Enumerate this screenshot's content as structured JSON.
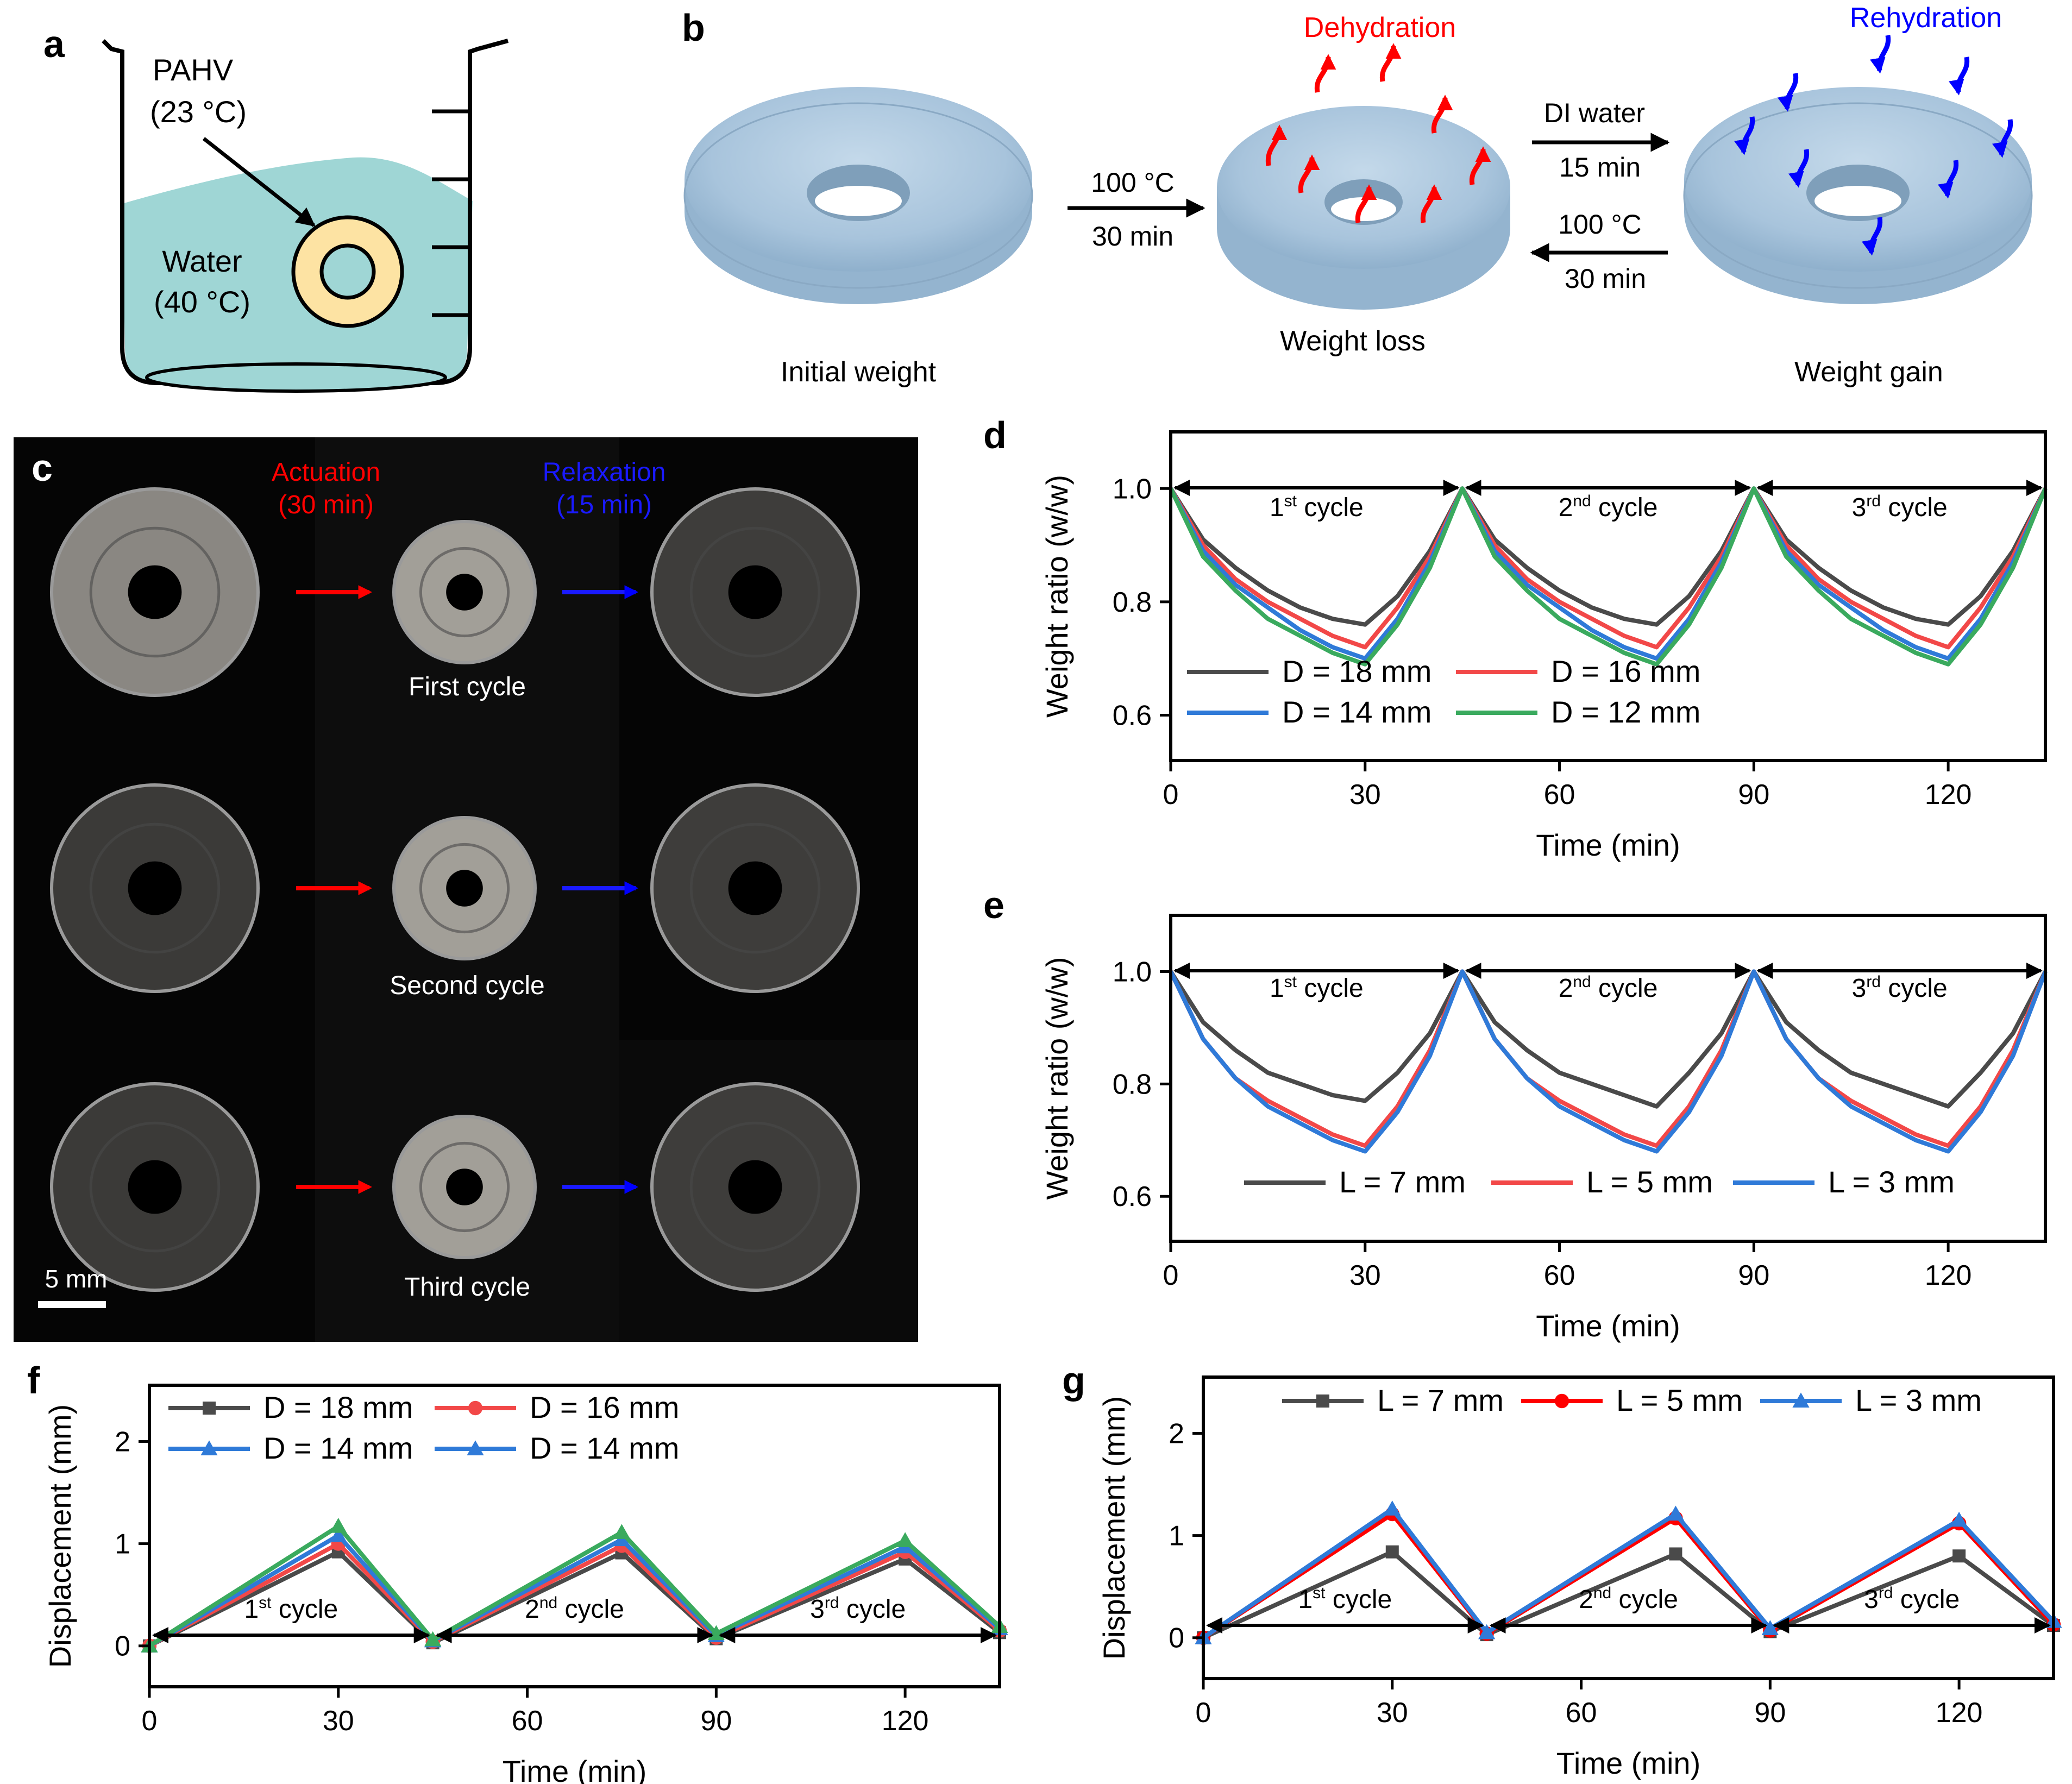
{
  "panel_labels": {
    "a": "a",
    "b": "b",
    "c": "c",
    "d": "d",
    "e": "e",
    "f": "f",
    "g": "g"
  },
  "panel_a": {
    "sample_label": "PAHV",
    "sample_temp": "(23 °C)",
    "water_label": "Water",
    "water_temp": "(40 °C)",
    "colors": {
      "water": "#9fd6d5",
      "sample": "#fde3a3"
    }
  },
  "panel_b": {
    "dehydration_label": "Dehydration",
    "rehydration_label": "Rehydration",
    "step1_top": "100 °C",
    "step1_bottom": "30 min",
    "step2_top": "DI water",
    "step2_bottom": "15 min",
    "step3_top": "100 °C",
    "step3_bottom": "30 min",
    "caption_initial": "Initial weight",
    "caption_loss": "Weight loss",
    "caption_gain": "Weight gain",
    "colors": {
      "torus": "#a8c4dc",
      "dehydration": "#ff0000",
      "rehydration": "#0000ff"
    }
  },
  "panel_c": {
    "actuation_label": "Actuation",
    "actuation_time": "(30 min)",
    "relaxation_label": "Relaxation",
    "relaxation_time": "(15 min)",
    "row_captions": [
      "First cycle",
      "Second cycle",
      "Third cycle"
    ],
    "scale_bar": "5 mm"
  },
  "cycle_labels": [
    {
      "num": "1",
      "sup": "st",
      "word": " cycle"
    },
    {
      "num": "2",
      "sup": "nd",
      "word": " cycle"
    },
    {
      "num": "3",
      "sup": "rd",
      "word": " cycle"
    }
  ],
  "chart_data": [
    {
      "id": "d",
      "type": "line",
      "xlabel": "Time (min)",
      "ylabel": "Weight ratio (w/w)",
      "xlim": [
        0,
        135
      ],
      "ylim": [
        0.52,
        1.1
      ],
      "xticks": [
        0,
        30,
        60,
        90,
        120
      ],
      "yticks": [
        0.6,
        0.8,
        1.0
      ],
      "ytick_labels": [
        "0.6",
        "0.8",
        "1.0"
      ],
      "x": [
        0,
        5,
        10,
        15,
        20,
        25,
        30,
        35,
        40,
        45,
        50,
        55,
        60,
        65,
        70,
        75,
        80,
        85,
        90,
        95,
        100,
        105,
        110,
        115,
        120,
        125,
        130,
        135
      ],
      "series": [
        {
          "name": "D = 18 mm",
          "color": "#4a4a4a",
          "values": [
            1.0,
            0.91,
            0.86,
            0.82,
            0.79,
            0.77,
            0.76,
            0.81,
            0.89,
            1.0,
            0.91,
            0.86,
            0.82,
            0.79,
            0.77,
            0.76,
            0.81,
            0.89,
            1.0,
            0.91,
            0.86,
            0.82,
            0.79,
            0.77,
            0.76,
            0.81,
            0.89,
            1.0
          ]
        },
        {
          "name": "D = 16 mm",
          "color": "#f24848",
          "values": [
            1.0,
            0.9,
            0.84,
            0.8,
            0.77,
            0.74,
            0.72,
            0.79,
            0.88,
            1.0,
            0.9,
            0.84,
            0.8,
            0.77,
            0.74,
            0.72,
            0.79,
            0.88,
            1.0,
            0.9,
            0.84,
            0.8,
            0.77,
            0.74,
            0.72,
            0.79,
            0.88,
            1.0
          ]
        },
        {
          "name": "D = 14 mm",
          "color": "#2f7ad8",
          "values": [
            1.0,
            0.89,
            0.83,
            0.79,
            0.75,
            0.72,
            0.7,
            0.77,
            0.87,
            1.0,
            0.89,
            0.83,
            0.79,
            0.75,
            0.72,
            0.7,
            0.77,
            0.87,
            1.0,
            0.89,
            0.83,
            0.79,
            0.75,
            0.72,
            0.7,
            0.77,
            0.87,
            1.0
          ]
        },
        {
          "name": "D = 12 mm",
          "color": "#3aaa5e",
          "values": [
            1.0,
            0.88,
            0.82,
            0.77,
            0.74,
            0.71,
            0.69,
            0.76,
            0.86,
            1.0,
            0.88,
            0.82,
            0.77,
            0.74,
            0.71,
            0.69,
            0.76,
            0.86,
            1.0,
            0.88,
            0.82,
            0.77,
            0.74,
            0.71,
            0.69,
            0.76,
            0.86,
            1.0
          ]
        }
      ]
    },
    {
      "id": "e",
      "type": "line",
      "xlabel": "Time (min)",
      "ylabel": "Weight ratio (w/w)",
      "xlim": [
        0,
        135
      ],
      "ylim": [
        0.52,
        1.1
      ],
      "xticks": [
        0,
        30,
        60,
        90,
        120
      ],
      "yticks": [
        0.6,
        0.8,
        1.0
      ],
      "ytick_labels": [
        "0.6",
        "0.8",
        "1.0"
      ],
      "x": [
        0,
        5,
        10,
        15,
        20,
        25,
        30,
        35,
        40,
        45,
        50,
        55,
        60,
        65,
        70,
        75,
        80,
        85,
        90,
        95,
        100,
        105,
        110,
        115,
        120,
        125,
        130,
        135
      ],
      "series": [
        {
          "name": "L = 7 mm",
          "color": "#4a4a4a",
          "values": [
            1.0,
            0.91,
            0.86,
            0.82,
            0.8,
            0.78,
            0.77,
            0.82,
            0.89,
            1.0,
            0.91,
            0.86,
            0.82,
            0.8,
            0.78,
            0.76,
            0.82,
            0.89,
            1.0,
            0.91,
            0.86,
            0.82,
            0.8,
            0.78,
            0.76,
            0.82,
            0.89,
            1.0
          ]
        },
        {
          "name": "L = 5 mm",
          "color": "#f24848",
          "values": [
            1.0,
            0.88,
            0.81,
            0.77,
            0.74,
            0.71,
            0.69,
            0.76,
            0.86,
            1.0,
            0.88,
            0.81,
            0.77,
            0.74,
            0.71,
            0.69,
            0.76,
            0.86,
            1.0,
            0.88,
            0.81,
            0.77,
            0.74,
            0.71,
            0.69,
            0.76,
            0.86,
            1.0
          ]
        },
        {
          "name": "L = 3 mm",
          "color": "#2f7ad8",
          "values": [
            1.0,
            0.88,
            0.81,
            0.76,
            0.73,
            0.7,
            0.68,
            0.75,
            0.85,
            1.0,
            0.88,
            0.81,
            0.76,
            0.73,
            0.7,
            0.68,
            0.75,
            0.85,
            1.0,
            0.88,
            0.81,
            0.76,
            0.73,
            0.7,
            0.68,
            0.75,
            0.85,
            1.0
          ]
        }
      ]
    },
    {
      "id": "f",
      "type": "line",
      "xlabel": "Time (min)",
      "ylabel": "Displacement (mm)",
      "xlim": [
        0,
        135
      ],
      "ylim": [
        -0.4,
        2.55
      ],
      "xticks": [
        0,
        30,
        60,
        90,
        120
      ],
      "yticks": [
        0,
        1,
        2
      ],
      "ytick_labels": [
        "0",
        "1",
        "2"
      ],
      "x": [
        0,
        30,
        45,
        75,
        90,
        120,
        135
      ],
      "series": [
        {
          "name": "D = 18 mm",
          "color": "#4a4a4a",
          "marker": "square",
          "values": [
            0.0,
            0.92,
            0.03,
            0.91,
            0.07,
            0.85,
            0.13
          ]
        },
        {
          "name": "D = 16 mm",
          "color": "#f24848",
          "marker": "circle",
          "values": [
            0.0,
            1.0,
            0.04,
            0.98,
            0.08,
            0.92,
            0.15
          ]
        },
        {
          "name": "D = 14 mm",
          "color": "#2f7ad8",
          "marker": "triangle",
          "values": [
            0.0,
            1.08,
            0.05,
            1.04,
            0.1,
            0.97,
            0.17
          ]
        },
        {
          "name": "D = 14 mm",
          "color": "#3aaa5e",
          "legend_color": "#2f7ad8",
          "marker": "triangle",
          "values": [
            0.0,
            1.17,
            0.06,
            1.11,
            0.12,
            1.03,
            0.19
          ]
        }
      ]
    },
    {
      "id": "g",
      "type": "line",
      "xlabel": "Time (min)",
      "ylabel": "Displacement (mm)",
      "xlim": [
        0,
        135
      ],
      "ylim": [
        -0.4,
        2.55
      ],
      "xticks": [
        0,
        30,
        60,
        90,
        120
      ],
      "yticks": [
        0,
        1,
        2
      ],
      "ytick_labels": [
        "0",
        "1",
        "2"
      ],
      "x": [
        0,
        30,
        45,
        75,
        90,
        120,
        135
      ],
      "series": [
        {
          "name": "L = 7 mm",
          "color": "#4a4a4a",
          "marker": "square",
          "values": [
            0.0,
            0.84,
            0.03,
            0.82,
            0.06,
            0.8,
            0.12
          ]
        },
        {
          "name": "L = 5 mm",
          "color": "#ff0000",
          "marker": "circle",
          "values": [
            0.0,
            1.21,
            0.04,
            1.17,
            0.07,
            1.12,
            0.13
          ]
        },
        {
          "name": "L = 3 mm",
          "color": "#2f7ad8",
          "marker": "triangle",
          "values": [
            0.0,
            1.26,
            0.05,
            1.21,
            0.09,
            1.15,
            0.16
          ]
        }
      ]
    }
  ]
}
